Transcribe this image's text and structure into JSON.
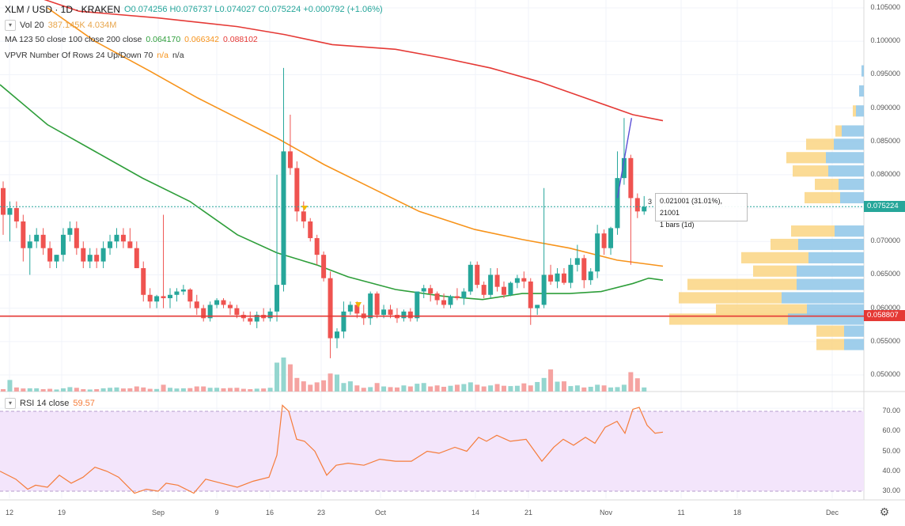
{
  "header": {
    "symbol": "XLM / USD · 1D · KRAKEN",
    "ohlc_text": "O0.074256  H0.076737  L0.074027  C0.075224  +0.000792 (+1.06%)"
  },
  "indicators": {
    "vol": {
      "name": "Vol 20",
      "values": "387.145K  4.034M"
    },
    "ma": {
      "name": "MA 123 50 close 100 close 200 close",
      "v50": "0.064170",
      "v100": "0.066342",
      "v200": "0.088102"
    },
    "vpvr": {
      "name": "VPVR Number Of Rows 24 Up/Down 70",
      "v1": "n/a",
      "v2": "n/a"
    },
    "rsi": {
      "name": "RSI 14 close",
      "value": "59.57"
    }
  },
  "price_axis": [
    "0.105000",
    "0.100000",
    "0.095000",
    "0.090000",
    "0.085000",
    "0.080000",
    "0.075000",
    "0.070000",
    "0.065000",
    "0.060000",
    "0.055000",
    "0.050000"
  ],
  "rsi_axis": [
    "70.00",
    "60.00",
    "50.00",
    "40.00",
    "30.00"
  ],
  "time_axis": [
    "12",
    "19",
    "Sep",
    "9",
    "16",
    "23",
    "Oct",
    "14",
    "21",
    "Nov",
    "11",
    "18",
    "Dec"
  ],
  "price_tags": {
    "current": "0.075224",
    "support": "0.058807"
  },
  "measure_tooltip": {
    "line1": "0.021001 (31.01%), 21001",
    "line2": "1 bars (1d)",
    "index": "3"
  },
  "colors": {
    "up": "#26a69a",
    "down": "#ef5350",
    "ma50": "#2e9e3a",
    "ma100": "#f7931a",
    "ma200": "#e53935",
    "support": "#e53935",
    "current": "#26a69a",
    "rsi": "#f57c3a",
    "rsi_band": "#f3e5fb",
    "vp_up": "#8ec5e8",
    "vp_down": "#fbd78a"
  },
  "chart_data": {
    "type": "candlestick",
    "xlabel": "",
    "ylabel": "",
    "ylim": [
      0.046,
      0.107
    ],
    "candles": [
      [
        0.078,
        0.079,
        0.071,
        0.074
      ],
      [
        0.074,
        0.076,
        0.07,
        0.075
      ],
      [
        0.075,
        0.076,
        0.072,
        0.073
      ],
      [
        0.073,
        0.074,
        0.067,
        0.069
      ],
      [
        0.069,
        0.071,
        0.065,
        0.07
      ],
      [
        0.07,
        0.072,
        0.069,
        0.071
      ],
      [
        0.071,
        0.072,
        0.068,
        0.069
      ],
      [
        0.069,
        0.07,
        0.066,
        0.067
      ],
      [
        0.067,
        0.068,
        0.066,
        0.068
      ],
      [
        0.068,
        0.072,
        0.067,
        0.071
      ],
      [
        0.071,
        0.073,
        0.07,
        0.072
      ],
      [
        0.072,
        0.073,
        0.068,
        0.069
      ],
      [
        0.069,
        0.07,
        0.066,
        0.067
      ],
      [
        0.067,
        0.069,
        0.066,
        0.068
      ],
      [
        0.068,
        0.069,
        0.066,
        0.067
      ],
      [
        0.067,
        0.07,
        0.066,
        0.069
      ],
      [
        0.069,
        0.071,
        0.068,
        0.07
      ],
      [
        0.07,
        0.072,
        0.069,
        0.071
      ],
      [
        0.071,
        0.072,
        0.069,
        0.07
      ],
      [
        0.07,
        0.072,
        0.069,
        0.069
      ],
      [
        0.069,
        0.07,
        0.066,
        0.066
      ],
      [
        0.066,
        0.067,
        0.061,
        0.062
      ],
      [
        0.062,
        0.063,
        0.06,
        0.061
      ],
      [
        0.061,
        0.062,
        0.06,
        0.0618
      ],
      [
        0.0618,
        0.074,
        0.06,
        0.0615
      ],
      [
        0.0615,
        0.063,
        0.06,
        0.062
      ],
      [
        0.062,
        0.063,
        0.061,
        0.0625
      ],
      [
        0.0625,
        0.0635,
        0.062,
        0.0628
      ],
      [
        0.0628,
        0.063,
        0.06,
        0.061
      ],
      [
        0.061,
        0.062,
        0.059,
        0.06
      ],
      [
        0.06,
        0.0605,
        0.058,
        0.0585
      ],
      [
        0.0585,
        0.061,
        0.058,
        0.0605
      ],
      [
        0.0605,
        0.0615,
        0.06,
        0.0612
      ],
      [
        0.0612,
        0.0615,
        0.06,
        0.0605
      ],
      [
        0.0605,
        0.061,
        0.059,
        0.06
      ],
      [
        0.06,
        0.0605,
        0.0585,
        0.059
      ],
      [
        0.059,
        0.0595,
        0.058,
        0.0585
      ],
      [
        0.0585,
        0.0595,
        0.0575,
        0.058
      ],
      [
        0.058,
        0.0595,
        0.057,
        0.059
      ],
      [
        0.059,
        0.06,
        0.058,
        0.0585
      ],
      [
        0.0585,
        0.06,
        0.058,
        0.0595
      ],
      [
        0.0595,
        0.08,
        0.058,
        0.0635
      ],
      [
        0.0635,
        0.096,
        0.0625,
        0.0835
      ],
      [
        0.0835,
        0.089,
        0.08,
        0.081
      ],
      [
        0.081,
        0.082,
        0.073,
        0.0745
      ],
      [
        0.0745,
        0.076,
        0.072,
        0.073
      ],
      [
        0.073,
        0.0735,
        0.07,
        0.0705
      ],
      [
        0.0705,
        0.071,
        0.0665,
        0.068
      ],
      [
        0.068,
        0.0685,
        0.064,
        0.0645
      ],
      [
        0.0645,
        0.0655,
        0.0525,
        0.0555
      ],
      [
        0.0555,
        0.057,
        0.054,
        0.0565
      ],
      [
        0.0565,
        0.061,
        0.0555,
        0.0595
      ],
      [
        0.0595,
        0.061,
        0.059,
        0.0605
      ],
      [
        0.0605,
        0.061,
        0.0585,
        0.0592
      ],
      [
        0.0592,
        0.0605,
        0.0575,
        0.0585
      ],
      [
        0.0585,
        0.0625,
        0.0575,
        0.0622
      ],
      [
        0.0622,
        0.0625,
        0.0585,
        0.059
      ],
      [
        0.059,
        0.0605,
        0.0585,
        0.0598
      ],
      [
        0.0598,
        0.0605,
        0.0585,
        0.059
      ],
      [
        0.059,
        0.06,
        0.0578,
        0.0585
      ],
      [
        0.0585,
        0.0598,
        0.058,
        0.0595
      ],
      [
        0.0595,
        0.06,
        0.058,
        0.0585
      ],
      [
        0.0585,
        0.0625,
        0.058,
        0.0625
      ],
      [
        0.0625,
        0.0635,
        0.0615,
        0.063
      ],
      [
        0.063,
        0.0635,
        0.061,
        0.0622
      ],
      [
        0.0622,
        0.0625,
        0.0605,
        0.0612
      ],
      [
        0.0612,
        0.0622,
        0.06,
        0.0605
      ],
      [
        0.0605,
        0.062,
        0.06,
        0.0618
      ],
      [
        0.0618,
        0.063,
        0.0612,
        0.0615
      ],
      [
        0.0615,
        0.063,
        0.0605,
        0.0625
      ],
      [
        0.0625,
        0.067,
        0.062,
        0.0665
      ],
      [
        0.0665,
        0.067,
        0.063,
        0.0635
      ],
      [
        0.0635,
        0.064,
        0.0615,
        0.062
      ],
      [
        0.062,
        0.066,
        0.0615,
        0.065
      ],
      [
        0.065,
        0.066,
        0.0625,
        0.0632
      ],
      [
        0.0632,
        0.064,
        0.0615,
        0.062
      ],
      [
        0.062,
        0.064,
        0.0618,
        0.0638
      ],
      [
        0.0638,
        0.065,
        0.063,
        0.0645
      ],
      [
        0.0645,
        0.0655,
        0.063,
        0.064
      ],
      [
        0.064,
        0.0645,
        0.0575,
        0.06
      ],
      [
        0.06,
        0.0605,
        0.059,
        0.0605
      ],
      [
        0.0605,
        0.078,
        0.06,
        0.065
      ],
      [
        0.065,
        0.0665,
        0.0635,
        0.064
      ],
      [
        0.064,
        0.066,
        0.063,
        0.0652
      ],
      [
        0.0652,
        0.066,
        0.0635,
        0.0638
      ],
      [
        0.0638,
        0.0675,
        0.063,
        0.0665
      ],
      [
        0.0665,
        0.0695,
        0.0655,
        0.0675
      ],
      [
        0.0675,
        0.068,
        0.063,
        0.0642
      ],
      [
        0.0642,
        0.066,
        0.0635,
        0.0655
      ],
      [
        0.0655,
        0.0725,
        0.0645,
        0.0712
      ],
      [
        0.0712,
        0.0718,
        0.068,
        0.069
      ],
      [
        0.069,
        0.0722,
        0.068,
        0.072
      ],
      [
        0.072,
        0.0835,
        0.071,
        0.0795
      ],
      [
        0.0795,
        0.0885,
        0.0785,
        0.0825
      ],
      [
        0.0825,
        0.083,
        0.0665,
        0.0765
      ],
      [
        0.0765,
        0.0772,
        0.0735,
        0.0745
      ],
      [
        0.0745,
        0.0768,
        0.074,
        0.0752
      ]
    ],
    "volume": [
      70,
      340,
      120,
      90,
      95,
      95,
      70,
      80,
      60,
      95,
      130,
      110,
      70,
      60,
      70,
      95,
      110,
      120,
      90,
      95,
      150,
      120,
      80,
      75,
      200,
      110,
      90,
      95,
      100,
      150,
      150,
      110,
      110,
      95,
      105,
      110,
      80,
      70,
      85,
      90,
      110,
      850,
      1000,
      800,
      400,
      300,
      200,
      270,
      330,
      530,
      500,
      250,
      300,
      180,
      110,
      130,
      250,
      150,
      130,
      120,
      180,
      150,
      230,
      250,
      150,
      180,
      140,
      170,
      200,
      220,
      270,
      200,
      150,
      180,
      220,
      170,
      160,
      170,
      240,
      180,
      280,
      400,
      650,
      290,
      300,
      160,
      180,
      120,
      140,
      200,
      180,
      120,
      130,
      200,
      570,
      390,
      120
    ]
  }
}
